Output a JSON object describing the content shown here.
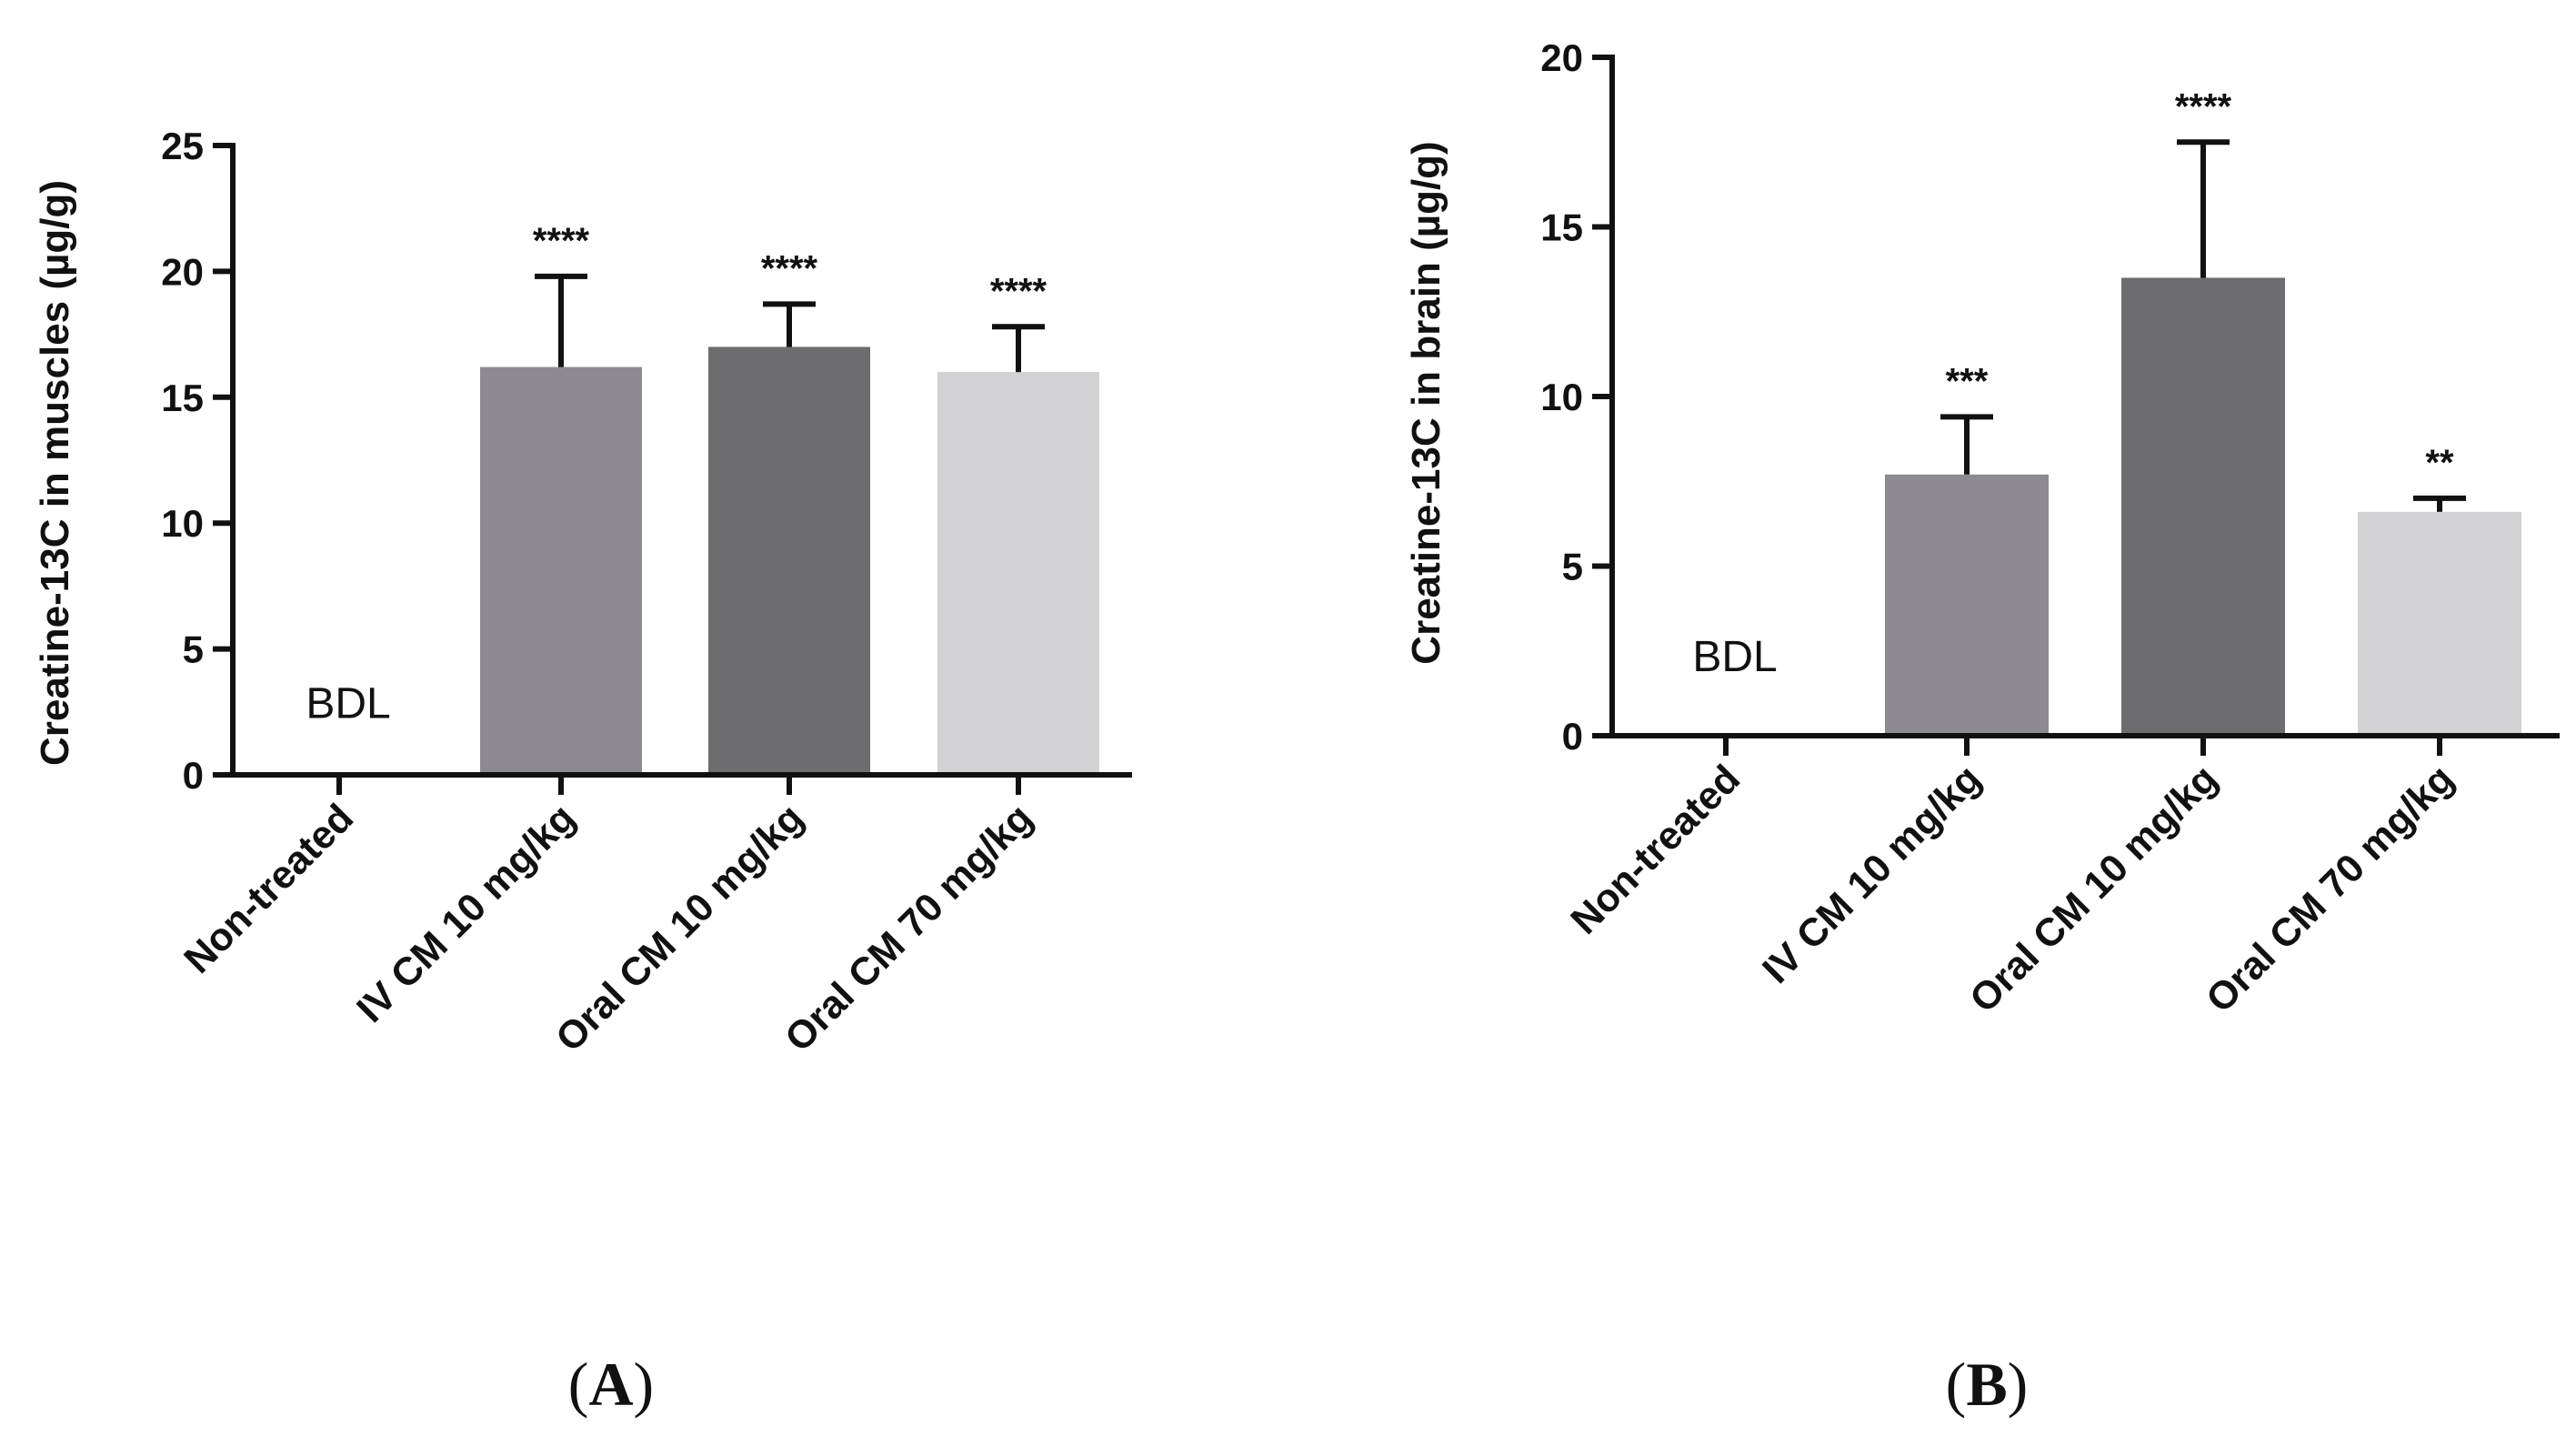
{
  "chart_data": [
    {
      "type": "bar",
      "panel_label": "A",
      "ylabel": "Creatine-13C in muscles (µg/g)",
      "ylim": [
        0,
        25
      ],
      "yticks": [
        0,
        5,
        10,
        15,
        20,
        25
      ],
      "categories": [
        "Non-treated",
        "IV CM 10 mg/kg",
        "Oral CM 10 mg/kg",
        "Oral CM 70 mg/kg"
      ],
      "values": [
        null,
        16.2,
        17.0,
        16.0
      ],
      "error": [
        null,
        3.6,
        1.7,
        1.8
      ],
      "significance": [
        "",
        "****",
        "****",
        "****"
      ],
      "annotations": [
        {
          "category": "Non-treated",
          "text": "BDL"
        }
      ],
      "colors": [
        "#ffffff",
        "#8c8a90",
        "#6d6d6f",
        "#d2d2d4"
      ]
    },
    {
      "type": "bar",
      "panel_label": "B",
      "ylabel": "Creatine-13C in brain (µg/g)",
      "ylim": [
        0,
        20
      ],
      "yticks": [
        0,
        5,
        10,
        15,
        20
      ],
      "categories": [
        "Non-treated",
        "IV CM 10 mg/kg",
        "Oral CM 10 mg/kg",
        "Oral CM 70 mg/kg"
      ],
      "values": [
        null,
        7.7,
        13.5,
        6.6
      ],
      "error": [
        null,
        1.7,
        4.0,
        0.4
      ],
      "significance": [
        "",
        "***",
        "****",
        "**"
      ],
      "annotations": [
        {
          "category": "Non-treated",
          "text": "BDL"
        }
      ],
      "colors": [
        "#ffffff",
        "#8c8a90",
        "#6d6d6f",
        "#d2d2d4"
      ]
    }
  ]
}
